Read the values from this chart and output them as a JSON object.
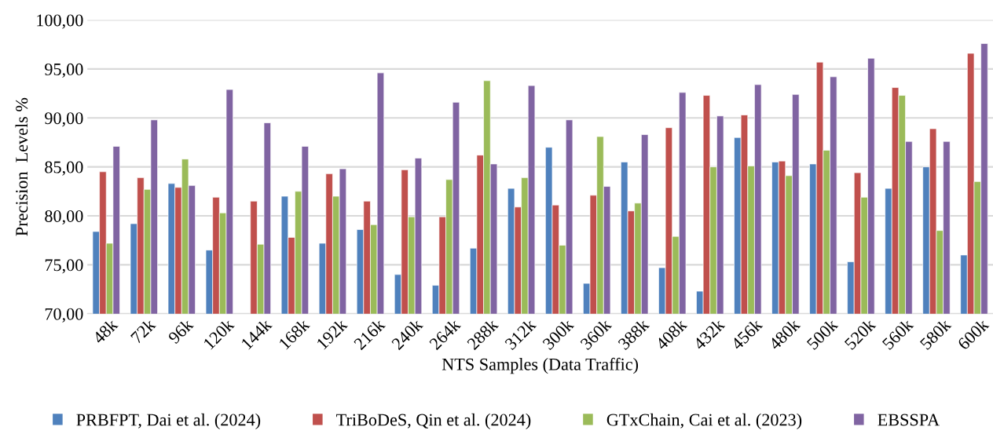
{
  "chart_data": {
    "type": "bar",
    "xlabel": "NTS Samples (Data Traffic)",
    "ylabel": "Precision  Levels %",
    "categories": [
      "48k",
      "72k",
      "96k",
      "120k",
      "144k",
      "168k",
      "192k",
      "216k",
      "240k",
      "264k",
      "288k",
      "312k",
      "300k",
      "360k",
      "388k",
      "408k",
      "432k",
      "456k",
      "480k",
      "500k",
      "520k",
      "560k",
      "580k",
      "600k"
    ],
    "series": [
      {
        "name": "PRBFPT, Dai et al. (2024)",
        "color": "#4f81bd",
        "values": [
          78.4,
          79.2,
          83.3,
          76.5,
          null,
          82.0,
          77.2,
          78.6,
          74.0,
          72.9,
          76.7,
          82.8,
          87.0,
          73.1,
          85.5,
          74.7,
          72.3,
          88.0,
          85.5,
          85.3,
          75.3,
          82.8,
          85.0,
          76.0
        ]
      },
      {
        "name": "TriBoDeS, Qin et al. (2024)",
        "color": "#c0504d",
        "values": [
          84.5,
          83.9,
          82.9,
          81.9,
          81.5,
          77.8,
          84.3,
          81.5,
          84.7,
          79.9,
          86.2,
          80.9,
          81.1,
          82.1,
          80.5,
          89.0,
          92.3,
          90.3,
          85.6,
          95.7,
          84.4,
          93.1,
          88.9,
          96.6
        ]
      },
      {
        "name": "GTxChain, Cai et al. (2023)",
        "color": "#9bbb59",
        "values": [
          77.2,
          82.7,
          85.8,
          80.3,
          77.1,
          82.5,
          82.0,
          79.1,
          79.9,
          83.7,
          93.8,
          83.9,
          77.0,
          88.1,
          81.3,
          77.9,
          85.0,
          85.1,
          84.1,
          86.7,
          81.9,
          92.3,
          78.5,
          83.5
        ]
      },
      {
        "name": "EBSSPA",
        "color": "#8064a2",
        "values": [
          87.1,
          89.8,
          83.1,
          92.9,
          89.5,
          87.1,
          84.8,
          94.6,
          85.9,
          91.6,
          85.3,
          93.3,
          89.8,
          83.0,
          88.3,
          92.6,
          90.2,
          93.4,
          92.4,
          94.2,
          96.1,
          87.6,
          87.6,
          97.6
        ]
      }
    ],
    "ylim": [
      70,
      100
    ],
    "yticks": [
      {
        "value": 70,
        "label": "70,00"
      },
      {
        "value": 75,
        "label": "75,00"
      },
      {
        "value": 80,
        "label": "80,00"
      },
      {
        "value": 85,
        "label": "85,00"
      },
      {
        "value": 90,
        "label": "90,00"
      },
      {
        "value": 95,
        "label": "95,00"
      },
      {
        "value": 100,
        "label": "100,00"
      }
    ],
    "grid": "y",
    "legend": "bottom"
  }
}
